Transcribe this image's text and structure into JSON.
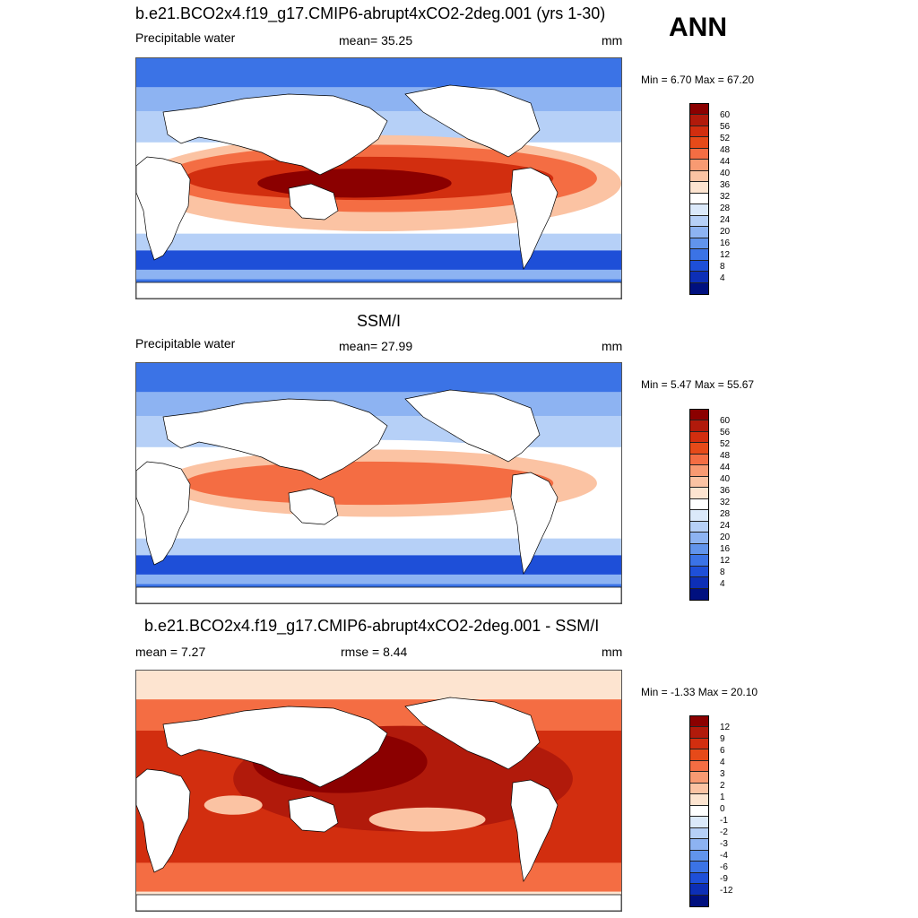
{
  "season": "ANN",
  "panels": [
    {
      "title": "b.e21.BCO2x4.f19_g17.CMIP6-abrupt4xCO2-2deg.001 (yrs 1-30)",
      "left_label": "Precipitable water",
      "mid_label": "mean=  35.25",
      "units": "mm",
      "minmax": "Min =   6.70 Max =  67.20",
      "colorbar_labels": [
        "60",
        "56",
        "52",
        "48",
        "44",
        "40",
        "36",
        "32",
        "28",
        "24",
        "20",
        "16",
        "12",
        "8",
        "4"
      ],
      "colors": [
        "#8b0000",
        "#b11a0b",
        "#d22e0f",
        "#e64a19",
        "#f46d43",
        "#f89a72",
        "#fbc3a3",
        "#fde4d0",
        "#ffffff",
        "#dbe9fa",
        "#b6d0f7",
        "#8db3f2",
        "#6194ec",
        "#3b73e6",
        "#1e4fd8",
        "#0d2fb6",
        "#00107f"
      ],
      "field": "abs"
    },
    {
      "title": "SSM/I",
      "left_label": "Precipitable water",
      "mid_label": "mean=  27.99",
      "units": "mm",
      "minmax": "Min =   5.47 Max =  55.67",
      "colorbar_labels": [
        "60",
        "56",
        "52",
        "48",
        "44",
        "40",
        "36",
        "32",
        "28",
        "24",
        "20",
        "16",
        "12",
        "8",
        "4"
      ],
      "colors": [
        "#8b0000",
        "#b11a0b",
        "#d22e0f",
        "#e64a19",
        "#f46d43",
        "#f89a72",
        "#fbc3a3",
        "#fde4d0",
        "#ffffff",
        "#dbe9fa",
        "#b6d0f7",
        "#8db3f2",
        "#6194ec",
        "#3b73e6",
        "#1e4fd8",
        "#0d2fb6",
        "#00107f"
      ],
      "field": "obs"
    },
    {
      "title": "b.e21.BCO2x4.f19_g17.CMIP6-abrupt4xCO2-2deg.001 - SSM/I",
      "left_label": "mean =   7.27",
      "mid_label": "rmse =   8.44",
      "units": "mm",
      "minmax": "Min =  -1.33 Max =  20.10",
      "colorbar_labels": [
        "12",
        "9",
        "6",
        "4",
        "3",
        "2",
        "1",
        "0",
        "-1",
        "-2",
        "-3",
        "-4",
        "-6",
        "-9",
        "-12"
      ],
      "colors": [
        "#8b0000",
        "#b11a0b",
        "#d22e0f",
        "#e64a19",
        "#f46d43",
        "#f89a72",
        "#fbc3a3",
        "#fde4d0",
        "#ffffff",
        "#dbe9fa",
        "#b6d0f7",
        "#8db3f2",
        "#6194ec",
        "#3b73e6",
        "#1e4fd8",
        "#0d2fb6",
        "#00107f"
      ],
      "field": "diff"
    }
  ]
}
